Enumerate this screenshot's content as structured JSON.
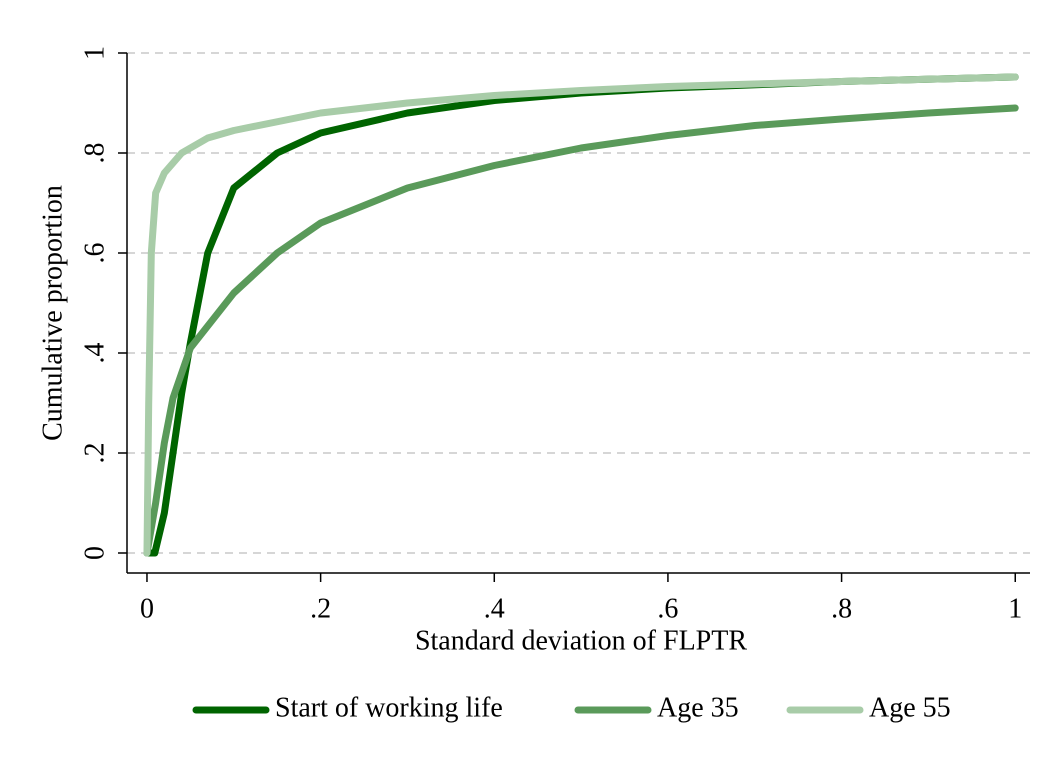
{
  "chart_data": {
    "type": "line",
    "x_label": "Standard deviation of FLPTR",
    "y_label": "Cumulative proportion",
    "xlim": [
      -0.023,
      1.017
    ],
    "ylim": [
      -0.04,
      1.02
    ],
    "xticks": [
      0,
      {
        "value": 0.2,
        "label": ".2"
      },
      {
        "value": 0.4,
        "label": ".4"
      },
      {
        "value": 0.6,
        "label": ".6"
      },
      {
        "value": 0.8,
        "label": ".8"
      },
      1
    ],
    "yticks": [
      0,
      {
        "value": 0.2,
        "label": ".2"
      },
      {
        "value": 0.4,
        "label": ".4"
      },
      {
        "value": 0.6,
        "label": ".6"
      },
      {
        "value": 0.8,
        "label": ".8"
      },
      1
    ],
    "grid": true,
    "legend": "bottom",
    "series": [
      {
        "name": "Start of working life",
        "color": "#006400",
        "x": [
          0,
          0.009,
          0.02,
          0.03,
          0.04,
          0.05,
          0.07,
          0.1,
          0.15,
          0.2,
          0.3,
          0.4,
          0.5,
          0.6,
          0.8,
          1
        ],
        "values": [
          0,
          0,
          0.08,
          0.2,
          0.32,
          0.42,
          0.6,
          0.73,
          0.8,
          0.84,
          0.88,
          0.905,
          0.92,
          0.93,
          0.943,
          0.952
        ]
      },
      {
        "name": "Age 35",
        "color": "#5a9a5a",
        "x": [
          0,
          0.01,
          0.02,
          0.03,
          0.05,
          0.1,
          0.15,
          0.2,
          0.3,
          0.4,
          0.5,
          0.6,
          0.7,
          0.8,
          0.9,
          1
        ],
        "values": [
          0,
          0.1,
          0.22,
          0.31,
          0.41,
          0.52,
          0.6,
          0.66,
          0.73,
          0.775,
          0.81,
          0.835,
          0.855,
          0.868,
          0.88,
          0.89
        ]
      },
      {
        "name": "Age 55",
        "color": "#a8cca8",
        "x": [
          0,
          0.002,
          0.005,
          0.01,
          0.02,
          0.04,
          0.07,
          0.1,
          0.2,
          0.3,
          0.4,
          0.5,
          0.6,
          0.8,
          1
        ],
        "values": [
          0,
          0.3,
          0.6,
          0.72,
          0.76,
          0.8,
          0.83,
          0.845,
          0.88,
          0.9,
          0.915,
          0.925,
          0.933,
          0.943,
          0.952
        ]
      }
    ]
  }
}
